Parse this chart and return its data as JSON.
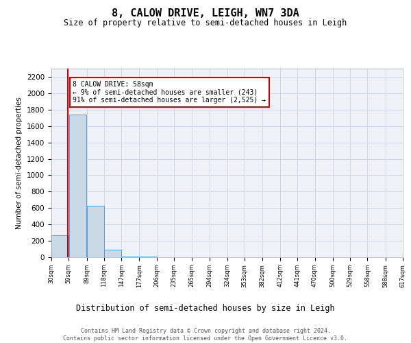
{
  "title": "8, CALOW DRIVE, LEIGH, WN7 3DA",
  "subtitle": "Size of property relative to semi-detached houses in Leigh",
  "xlabel": "Distribution of semi-detached houses by size in Leigh",
  "ylabel": "Number of semi-detached properties",
  "footer": "Contains HM Land Registry data © Crown copyright and database right 2024.\nContains public sector information licensed under the Open Government Licence v3.0.",
  "annotation_title": "8 CALOW DRIVE: 58sqm",
  "annotation_line1": "← 9% of semi-detached houses are smaller (243)",
  "annotation_line2": "91% of semi-detached houses are larger (2,525) →",
  "property_size": 58,
  "bins": [
    30,
    59,
    89,
    118,
    147,
    177,
    206,
    235,
    265,
    294,
    324,
    353,
    382,
    412,
    441,
    470,
    500,
    529,
    558,
    588,
    617
  ],
  "values": [
    270,
    1740,
    630,
    90,
    10,
    5,
    2,
    1,
    0,
    0,
    0,
    0,
    0,
    0,
    0,
    0,
    0,
    0,
    0,
    0
  ],
  "bar_color": "#c9d9e8",
  "bar_edge_color": "#5b9bd5",
  "line_color": "#cc0000",
  "annotation_box_color": "#cc0000",
  "grid_color": "#d0d8e8",
  "bg_color": "#eef2f8",
  "ylim": [
    0,
    2300
  ],
  "yticks": [
    0,
    200,
    400,
    600,
    800,
    1000,
    1200,
    1400,
    1600,
    1800,
    2000,
    2200
  ],
  "title_fontsize": 11,
  "subtitle_fontsize": 8.5,
  "ylabel_fontsize": 7.5,
  "xlabel_fontsize": 8.5,
  "ytick_fontsize": 7.5,
  "xtick_fontsize": 6.0,
  "annotation_fontsize": 7.0,
  "footer_fontsize": 6.0
}
